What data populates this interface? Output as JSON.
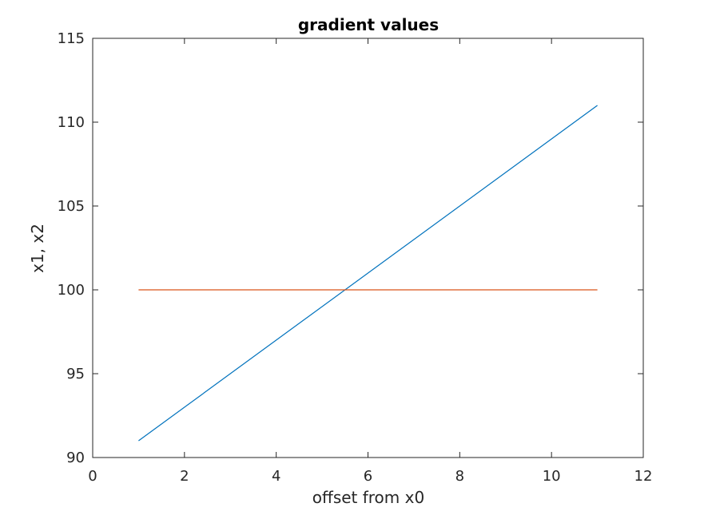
{
  "chart_data": {
    "type": "line",
    "title": "gradient values",
    "xlabel": "offset from x0",
    "ylabel": "x1, x2",
    "xlim": [
      0,
      12
    ],
    "ylim": [
      90,
      115
    ],
    "xticks": [
      0,
      2,
      4,
      6,
      8,
      10,
      12
    ],
    "yticks": [
      90,
      95,
      100,
      105,
      110,
      115
    ],
    "grid": false,
    "series": [
      {
        "color": "#0072bd",
        "x": [
          1,
          11
        ],
        "y": [
          91,
          111
        ]
      },
      {
        "color": "#d95319",
        "x": [
          1,
          11
        ],
        "y": [
          100,
          100
        ]
      }
    ]
  }
}
